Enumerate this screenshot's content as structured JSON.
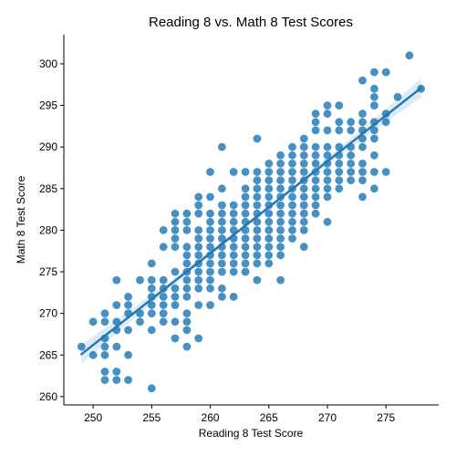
{
  "colors": {
    "point": "#1f77b4",
    "line": "#1f77b4",
    "band": "#1f77b4",
    "axis": "#000000"
  },
  "chart_data": {
    "type": "scatter",
    "title": "Reading 8 vs. Math 8 Test Scores",
    "xlabel": "Reading 8 Test Score",
    "ylabel": "Math 8 Test Score",
    "xlim": [
      247.5,
      279.5
    ],
    "ylim": [
      259.0,
      303.5
    ],
    "xticks": [
      250,
      255,
      260,
      265,
      270,
      275
    ],
    "yticks": [
      260,
      265,
      270,
      275,
      280,
      285,
      290,
      295,
      300
    ],
    "grid": false,
    "regression": {
      "x": [
        249,
        278
      ],
      "y": [
        265.1,
        297.1
      ]
    },
    "series": [
      {
        "points": [
          [
            249,
            266
          ],
          [
            250,
            269
          ],
          [
            250,
            265
          ],
          [
            251,
            270
          ],
          [
            251,
            269
          ],
          [
            251,
            267
          ],
          [
            251,
            266
          ],
          [
            251,
            265
          ],
          [
            251,
            263
          ],
          [
            251,
            262
          ],
          [
            252,
            274
          ],
          [
            252,
            271
          ],
          [
            252,
            269
          ],
          [
            252,
            268
          ],
          [
            252,
            266
          ],
          [
            252,
            263
          ],
          [
            252,
            262
          ],
          [
            253,
            272
          ],
          [
            253,
            271
          ],
          [
            253,
            270
          ],
          [
            253,
            268
          ],
          [
            253,
            265
          ],
          [
            253,
            262
          ],
          [
            254,
            274
          ],
          [
            254,
            270
          ],
          [
            254,
            269
          ],
          [
            255,
            276
          ],
          [
            255,
            274
          ],
          [
            255,
            273
          ],
          [
            255,
            272
          ],
          [
            255,
            271
          ],
          [
            255,
            270
          ],
          [
            255,
            268
          ],
          [
            255,
            261
          ],
          [
            256,
            280
          ],
          [
            256,
            278
          ],
          [
            256,
            274
          ],
          [
            256,
            273
          ],
          [
            256,
            272
          ],
          [
            256,
            271
          ],
          [
            256,
            270
          ],
          [
            256,
            269
          ],
          [
            257,
            282
          ],
          [
            257,
            281
          ],
          [
            257,
            280
          ],
          [
            257,
            279
          ],
          [
            257,
            278
          ],
          [
            257,
            275
          ],
          [
            257,
            273
          ],
          [
            257,
            272
          ],
          [
            257,
            271
          ],
          [
            257,
            269
          ],
          [
            257,
            267
          ],
          [
            258,
            282
          ],
          [
            258,
            281
          ],
          [
            258,
            280
          ],
          [
            258,
            278
          ],
          [
            258,
            277
          ],
          [
            258,
            276
          ],
          [
            258,
            275
          ],
          [
            258,
            274
          ],
          [
            258,
            273
          ],
          [
            258,
            272
          ],
          [
            258,
            270
          ],
          [
            258,
            269
          ],
          [
            258,
            268
          ],
          [
            258,
            266
          ],
          [
            259,
            284
          ],
          [
            259,
            283
          ],
          [
            259,
            282
          ],
          [
            259,
            280
          ],
          [
            259,
            279
          ],
          [
            259,
            278
          ],
          [
            259,
            277
          ],
          [
            259,
            276
          ],
          [
            259,
            275
          ],
          [
            259,
            274
          ],
          [
            259,
            273
          ],
          [
            259,
            271
          ],
          [
            259,
            267
          ],
          [
            260,
            287
          ],
          [
            260,
            284
          ],
          [
            260,
            282
          ],
          [
            260,
            281
          ],
          [
            260,
            280
          ],
          [
            260,
            279
          ],
          [
            260,
            278
          ],
          [
            260,
            277
          ],
          [
            260,
            276
          ],
          [
            260,
            275
          ],
          [
            260,
            274
          ],
          [
            260,
            273
          ],
          [
            260,
            271
          ],
          [
            261,
            290
          ],
          [
            261,
            285
          ],
          [
            261,
            283
          ],
          [
            261,
            282
          ],
          [
            261,
            281
          ],
          [
            261,
            280
          ],
          [
            261,
            279
          ],
          [
            261,
            278
          ],
          [
            261,
            277
          ],
          [
            261,
            276
          ],
          [
            261,
            275
          ],
          [
            261,
            273
          ],
          [
            261,
            272
          ],
          [
            262,
            287
          ],
          [
            262,
            283
          ],
          [
            262,
            282
          ],
          [
            262,
            281
          ],
          [
            262,
            280
          ],
          [
            262,
            279
          ],
          [
            262,
            278
          ],
          [
            262,
            277
          ],
          [
            262,
            276
          ],
          [
            262,
            275
          ],
          [
            262,
            272
          ],
          [
            263,
            287
          ],
          [
            263,
            285
          ],
          [
            263,
            284
          ],
          [
            263,
            283
          ],
          [
            263,
            282
          ],
          [
            263,
            281
          ],
          [
            263,
            280
          ],
          [
            263,
            279
          ],
          [
            263,
            278
          ],
          [
            263,
            277
          ],
          [
            263,
            276
          ],
          [
            263,
            275
          ],
          [
            264,
            291
          ],
          [
            264,
            287
          ],
          [
            264,
            286
          ],
          [
            264,
            285
          ],
          [
            264,
            284
          ],
          [
            264,
            283
          ],
          [
            264,
            282
          ],
          [
            264,
            281
          ],
          [
            264,
            280
          ],
          [
            264,
            279
          ],
          [
            264,
            278
          ],
          [
            264,
            277
          ],
          [
            264,
            276
          ],
          [
            264,
            274
          ],
          [
            265,
            288
          ],
          [
            265,
            287
          ],
          [
            265,
            286
          ],
          [
            265,
            285
          ],
          [
            265,
            284
          ],
          [
            265,
            283
          ],
          [
            265,
            282
          ],
          [
            265,
            281
          ],
          [
            265,
            280
          ],
          [
            265,
            279
          ],
          [
            265,
            278
          ],
          [
            265,
            277
          ],
          [
            265,
            276
          ],
          [
            266,
            289
          ],
          [
            266,
            288
          ],
          [
            266,
            287
          ],
          [
            266,
            286
          ],
          [
            266,
            285
          ],
          [
            266,
            284
          ],
          [
            266,
            283
          ],
          [
            266,
            282
          ],
          [
            266,
            281
          ],
          [
            266,
            280
          ],
          [
            266,
            279
          ],
          [
            266,
            278
          ],
          [
            266,
            277
          ],
          [
            266,
            274
          ],
          [
            267,
            290
          ],
          [
            267,
            289
          ],
          [
            267,
            288
          ],
          [
            267,
            287
          ],
          [
            267,
            286
          ],
          [
            267,
            285
          ],
          [
            267,
            284
          ],
          [
            267,
            283
          ],
          [
            267,
            282
          ],
          [
            267,
            281
          ],
          [
            267,
            280
          ],
          [
            267,
            279
          ],
          [
            268,
            291
          ],
          [
            268,
            290
          ],
          [
            268,
            289
          ],
          [
            268,
            288
          ],
          [
            268,
            287
          ],
          [
            268,
            286
          ],
          [
            268,
            285
          ],
          [
            268,
            284
          ],
          [
            268,
            283
          ],
          [
            268,
            282
          ],
          [
            268,
            281
          ],
          [
            268,
            280
          ],
          [
            268,
            278
          ],
          [
            269,
            294
          ],
          [
            269,
            293
          ],
          [
            269,
            292
          ],
          [
            269,
            290
          ],
          [
            269,
            289
          ],
          [
            269,
            288
          ],
          [
            269,
            287
          ],
          [
            269,
            286
          ],
          [
            269,
            285
          ],
          [
            269,
            284
          ],
          [
            269,
            283
          ],
          [
            269,
            282
          ],
          [
            270,
            295
          ],
          [
            270,
            294
          ],
          [
            270,
            292
          ],
          [
            270,
            290
          ],
          [
            270,
            289
          ],
          [
            270,
            288
          ],
          [
            270,
            287
          ],
          [
            270,
            286
          ],
          [
            270,
            285
          ],
          [
            270,
            284
          ],
          [
            270,
            281
          ],
          [
            271,
            295
          ],
          [
            271,
            293
          ],
          [
            271,
            292
          ],
          [
            271,
            290
          ],
          [
            271,
            289
          ],
          [
            271,
            288
          ],
          [
            271,
            287
          ],
          [
            271,
            286
          ],
          [
            271,
            285
          ],
          [
            272,
            293
          ],
          [
            272,
            292
          ],
          [
            272,
            290
          ],
          [
            272,
            289
          ],
          [
            272,
            288
          ],
          [
            272,
            287
          ],
          [
            272,
            286
          ],
          [
            273,
            298
          ],
          [
            273,
            294
          ],
          [
            273,
            293
          ],
          [
            273,
            292
          ],
          [
            273,
            291
          ],
          [
            273,
            290
          ],
          [
            273,
            288
          ],
          [
            273,
            287
          ],
          [
            273,
            286
          ],
          [
            273,
            284
          ],
          [
            274,
            299
          ],
          [
            274,
            297
          ],
          [
            274,
            296
          ],
          [
            274,
            295
          ],
          [
            274,
            293
          ],
          [
            274,
            292
          ],
          [
            274,
            291
          ],
          [
            274,
            289
          ],
          [
            274,
            287
          ],
          [
            274,
            285
          ],
          [
            275,
            299
          ],
          [
            275,
            294
          ],
          [
            275,
            293
          ],
          [
            275,
            287
          ],
          [
            276,
            296
          ],
          [
            277,
            301
          ],
          [
            278,
            297
          ]
        ]
      }
    ]
  }
}
